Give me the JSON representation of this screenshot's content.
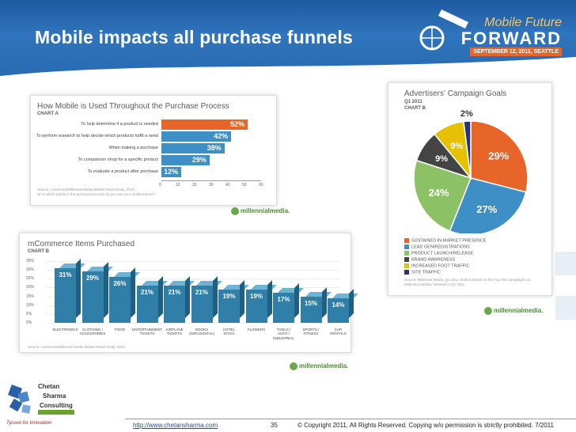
{
  "slide": {
    "title": "Mobile impacts all purchase funnels",
    "brand_top": "Mobile Future",
    "brand_main": "FORWARD",
    "brand_date": "SEPTEMBER 12, 2011, SEATTLE"
  },
  "colors": {
    "banner": "#2a6bb2",
    "orange": "#e8652a",
    "blue": "#3d8fc6",
    "teal": "#3a8fb0",
    "green": "#8cc165",
    "dark": "#444444",
    "yellow": "#e6c100",
    "navy": "#2b2f73"
  },
  "chart_data": [
    {
      "type": "bar",
      "orientation": "horizontal",
      "title": "How Mobile is Used Throughout the Purchase Process",
      "subtitle": "CHART A",
      "categories": [
        "To help determine if a product is needed",
        "To perform research to help decide which products fulfill a need",
        "When making a purchase",
        "To comparison shop for a specific product",
        "To evaluate a product after purchase"
      ],
      "values": [
        52,
        42,
        38,
        29,
        12
      ],
      "value_labels": [
        "52%",
        "42%",
        "38%",
        "29%",
        "12%"
      ],
      "xticks": [
        "0",
        "10",
        "20",
        "30",
        "40",
        "50",
        "60"
      ],
      "xlim": [
        0,
        60
      ],
      "source": "Source: comScore/Millennial Media Mobile Retail Study, 2010.",
      "note": "Q: At which points in the purchase process do you use your mobile phone?",
      "logo": "millennialmedia."
    },
    {
      "type": "pie",
      "title": "Advertisers' Campaign Goals",
      "subtitle1": "Q1 2011",
      "subtitle2": "CHART B",
      "slices": [
        {
          "label": "SUSTAINED IN-MARKET PRESENCE",
          "value": 29,
          "text": "29%",
          "color": "#e8652a"
        },
        {
          "label": "LEAD GEN/REGISTRATIONS",
          "value": 27,
          "text": "27%",
          "color": "#3d8fc6"
        },
        {
          "label": "PRODUCT LAUNCH/RELEASE",
          "value": 24,
          "text": "24%",
          "color": "#8cc165"
        },
        {
          "label": "BRAND AWARENESS",
          "value": 9,
          "text": "9%",
          "color": "#444444"
        },
        {
          "label": "INCREASED FOOT TRAFFIC",
          "value": 9,
          "text": "9%",
          "color": "#e6c100"
        },
        {
          "label": "SITE TRAFFIC",
          "value": 2,
          "text": "2%",
          "color": "#2b2f73"
        }
      ],
      "source": "Source: Millennial Media, Q1 2011. Data is based on the Top 750 Campaigns on Millennial Media's Network in Q1 2011.",
      "logo": "millennialmedia."
    },
    {
      "type": "bar",
      "title": "mCommerce Items Purchased",
      "subtitle": "CHART B",
      "categories": [
        [
          "ELECTRONICS"
        ],
        [
          "CLOTHING /",
          "ACCESSORIES"
        ],
        [
          "FOOD"
        ],
        [
          "ENTERTAINMENT",
          "TICKETS"
        ],
        [
          "AIRPLANE",
          "TICKETS"
        ],
        [
          "BOOKS",
          "(NON-DIGITAL)"
        ],
        [
          "HOTEL",
          "STAYS"
        ],
        [
          "FLOWERS"
        ],
        [
          "TOOLS /",
          "AUTO /",
          "INDUSTRIAL"
        ],
        [
          "SPORTS /",
          "FITNESS"
        ],
        [
          "CAR",
          "RENTALS"
        ]
      ],
      "values": [
        31,
        29,
        26,
        21,
        21,
        21,
        19,
        19,
        17,
        15,
        14
      ],
      "value_labels": [
        "31%",
        "29%",
        "26%",
        "21%",
        "21%",
        "21%",
        "19%",
        "19%",
        "17%",
        "15%",
        "14%"
      ],
      "yticks": [
        "35%",
        "30%",
        "25%",
        "20%",
        "15%",
        "10%",
        "5%",
        "0%"
      ],
      "ylim": [
        0,
        35
      ],
      "source": "Source: comScore/Millennial Media Mobile Retail Study, 2010.",
      "logo": "millennialmedia."
    }
  ],
  "footer": {
    "logo_line1": "Chetan",
    "logo_line2": "Sharma",
    "logo_line3": "Consulting",
    "tagline": "Tycoon for Innovation",
    "link": "http://www.chetansharma.com",
    "page": "35",
    "copyright": "© Copyright 2011, All Rights Reserved. Copying w/o permission is strictly prohibited. 7/2011"
  }
}
